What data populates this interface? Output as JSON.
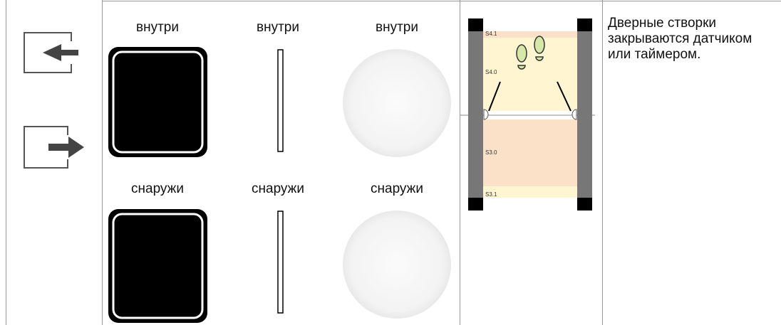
{
  "columns": [
    {
      "inside": "внутри",
      "outside": "снаружи"
    },
    {
      "inside": "внутри",
      "outside": "снаружи"
    },
    {
      "inside": "внутри",
      "outside": "снаружи"
    }
  ],
  "diagram": {
    "zones": [
      "S4.1",
      "S4.0",
      "S3.0",
      "S3.1"
    ]
  },
  "description": "Дверные створки закрываются датчиком или таймером."
}
